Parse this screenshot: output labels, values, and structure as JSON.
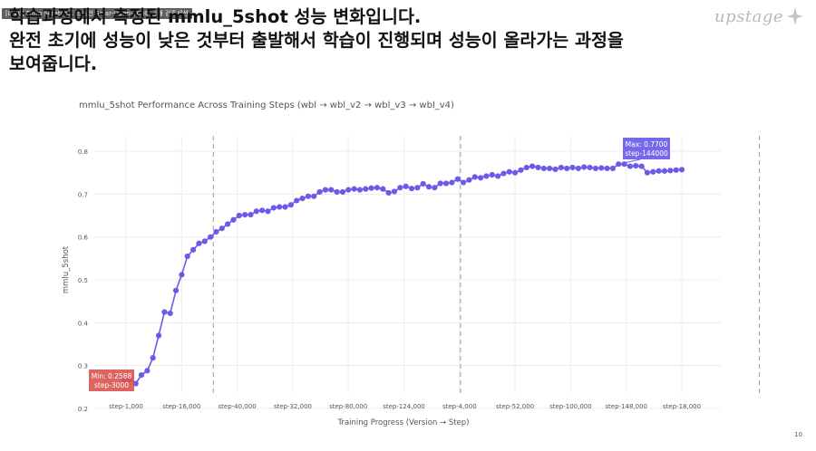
{
  "video": {
    "title": "[LIVE] From Scratch로 학습한 Solar-Open-100B 공개 검증세션"
  },
  "slide": {
    "heading_lines": [
      "학습과정에서 측정된 mmlu_5shot 성능 변화입니다.",
      "완전 초기에 성능이 낮은 것부터 출발해서 학습이 진행되며 성능이 올라가는 과정을",
      "보여줍니다."
    ],
    "logo_text": "upstage",
    "page_number": "10"
  },
  "colors": {
    "line": "#6a5ce8",
    "min_box": "#d9534f",
    "max_box": "#6a5ce8"
  },
  "chart_data": {
    "type": "line",
    "title": "mmlu_5shot Performance Across Training Steps (wbl → wbl_v2 → wbl_v3 → wbl_v4)",
    "xlabel": "Training Progress (Version → Step)",
    "ylabel": "mmlu_5shot",
    "ylim": [
      0.2,
      0.8
    ],
    "yticks": [
      0.2,
      0.3,
      0.4,
      0.5,
      0.6,
      0.7,
      0.8
    ],
    "xtick_labels": [
      "step-1,000",
      "step-16,000",
      "step-40,000",
      "step-32,000",
      "step-80,000",
      "step-124,000",
      "step-4,000",
      "step-52,000",
      "step-100,000",
      "step-148,000",
      "step-18,000"
    ],
    "grid": true,
    "version_boundaries": [
      16,
      59,
      111
    ],
    "series": [
      {
        "values": [
          0.267,
          0.267,
          0.258,
          0.278,
          0.288,
          0.318,
          0.37,
          0.425,
          0.422,
          0.475,
          0.512,
          0.555,
          0.57,
          0.585,
          0.59,
          0.6,
          0.612,
          0.62,
          0.63,
          0.64,
          0.65,
          0.652,
          0.652,
          0.66,
          0.662,
          0.66,
          0.668,
          0.67,
          0.67,
          0.675,
          0.685,
          0.69,
          0.695,
          0.695,
          0.705,
          0.71,
          0.71,
          0.705,
          0.705,
          0.71,
          0.712,
          0.71,
          0.712,
          0.714,
          0.715,
          0.712,
          0.703,
          0.706,
          0.715,
          0.718,
          0.713,
          0.715,
          0.724,
          0.717,
          0.715,
          0.725,
          0.725,
          0.727,
          0.735,
          0.727,
          0.733,
          0.74,
          0.738,
          0.742,
          0.745,
          0.742,
          0.748,
          0.752,
          0.75,
          0.756,
          0.762,
          0.765,
          0.762,
          0.76,
          0.76,
          0.758,
          0.762,
          0.76,
          0.762,
          0.76,
          0.763,
          0.762,
          0.76,
          0.761,
          0.76,
          0.76,
          0.77,
          0.77,
          0.765,
          0.766,
          0.765,
          0.75,
          0.752,
          0.754,
          0.754,
          0.755,
          0.756,
          0.757
        ]
      }
    ],
    "annotations": {
      "min": {
        "value_text": "Min: 0.2588",
        "step_text": "step-3000"
      },
      "max": {
        "value_text": "Max: 0.7700",
        "step_text": "step-144000"
      }
    }
  }
}
